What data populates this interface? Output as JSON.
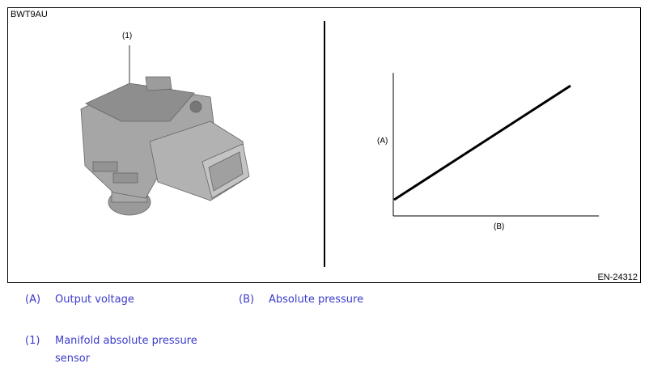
{
  "figure": {
    "id": "BWT9AU",
    "code": "EN-24312",
    "callout": "(1)",
    "graph": {
      "y_label": "(A)",
      "x_label": "(B)",
      "trend": "linear increasing"
    }
  },
  "legend": [
    {
      "key": "(A)",
      "text": "Output voltage"
    },
    {
      "key": "(B)",
      "text": "Absolute pressure"
    },
    {
      "key": "(1)",
      "text": "Manifold absolute pressure sensor"
    }
  ],
  "colors": {
    "legend_text": "#3b3bcc"
  }
}
